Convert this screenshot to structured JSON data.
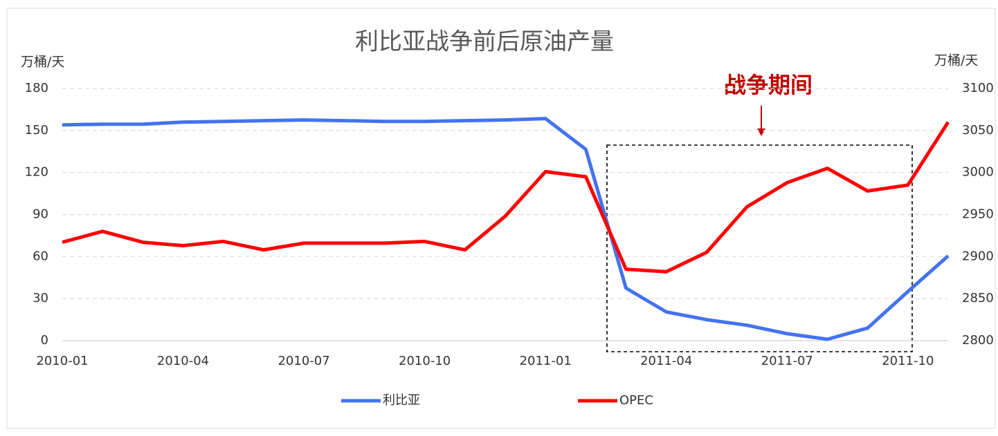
{
  "chart_data": {
    "type": "line",
    "title": "利比亚战争前后原油产量",
    "y_label": "万桶/天",
    "y2_label": "万桶/天",
    "annotation": "战争期间",
    "categories": [
      "2010-01",
      null,
      null,
      "2010-04",
      null,
      null,
      "2010-07",
      null,
      null,
      "2010-10",
      null,
      null,
      "2011-01",
      null,
      null,
      "2011-04",
      null,
      null,
      "2011-07",
      null,
      null,
      "2011-10",
      null
    ],
    "series": [
      {
        "name": "利比亚",
        "color": "#4472f0",
        "values": [
          154,
          154.5,
          154.5,
          156,
          156.5,
          157,
          157.5,
          157,
          156.5,
          156.5,
          157,
          157.5,
          158.5,
          136.5,
          37.5,
          20.5,
          15,
          11,
          5,
          1,
          9,
          35,
          60.5
        ]
      },
      {
        "name": "OPEC",
        "color": "#ff0000",
        "axis": "y2",
        "values": [
          2917,
          2930,
          2917,
          2913,
          2918,
          2908,
          2916,
          2916,
          2916,
          2918,
          2908,
          2948,
          3001,
          2995,
          2885,
          2882,
          2905,
          2959,
          2988,
          3005,
          2978,
          2985,
          3060
        ]
      }
    ],
    "ylim": [
      0,
      180
    ],
    "yticks": [
      0,
      30,
      60,
      90,
      120,
      150,
      180
    ],
    "y2lim": [
      2800,
      3100
    ],
    "y2ticks": [
      2800,
      2850,
      2900,
      2950,
      3000,
      3050,
      3100
    ],
    "grid": true,
    "legend": "bottom"
  }
}
